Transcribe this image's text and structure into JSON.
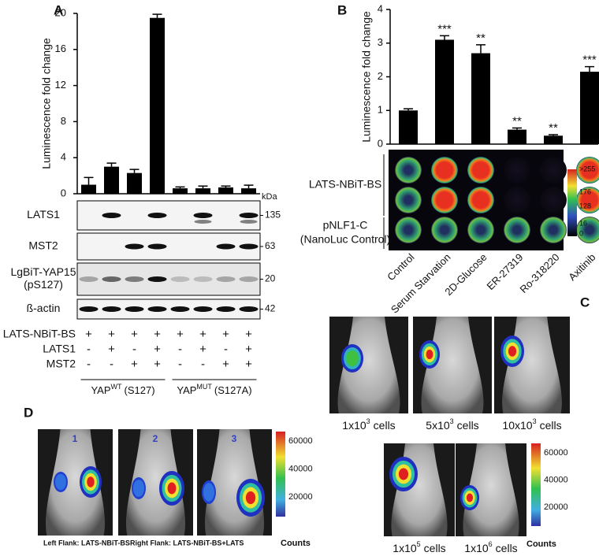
{
  "chart_data": [
    {
      "type": "bar",
      "label": "A",
      "ylabel": "Luminescence fold change",
      "categories": [
        null,
        null,
        null,
        null,
        null,
        null,
        null,
        null
      ],
      "values": [
        1.0,
        3.0,
        2.3,
        19.5,
        0.6,
        0.6,
        0.7,
        0.6
      ],
      "errors": [
        0.8,
        0.4,
        0.4,
        0.4,
        0.15,
        0.25,
        0.15,
        0.35
      ],
      "ylim": [
        0,
        20
      ],
      "yticks": [
        0,
        4,
        8,
        12,
        16,
        20
      ],
      "color": "#000000"
    },
    {
      "type": "bar",
      "label": "B",
      "ylabel": "Luminescence fold change",
      "categories": [
        "Control",
        "Serum Starvation",
        "2D-Glucose",
        "ER-27319",
        "Ro-318220",
        "Axitinib"
      ],
      "values": [
        1.0,
        3.1,
        2.7,
        0.43,
        0.25,
        2.15
      ],
      "errors": [
        0.05,
        0.12,
        0.25,
        0.05,
        0.03,
        0.15
      ],
      "annotations": [
        null,
        "***",
        "**",
        "**",
        "**",
        "***"
      ],
      "ylim": [
        0,
        4
      ],
      "yticks": [
        0,
        1,
        2,
        3,
        4
      ],
      "color": "#000000"
    }
  ],
  "blot": {
    "unit": "kDa",
    "rows": [
      {
        "label": [
          "LATS1"
        ],
        "kda": 135
      },
      {
        "label": [
          "MST2"
        ],
        "kda": 63
      },
      {
        "label": [
          "LgBiT-YAP15",
          "(pS127)"
        ],
        "kda": 20
      },
      {
        "label": [
          "ß-actin"
        ],
        "kda": 42
      }
    ]
  },
  "conditions": {
    "rows": [
      {
        "label": "LATS-NBiT-BS",
        "signs": [
          "+",
          "+",
          "+",
          "+",
          "+",
          "+",
          "+",
          "+"
        ]
      },
      {
        "label": "LATS1",
        "signs": [
          "-",
          "+",
          "-",
          "+",
          "-",
          "+",
          "-",
          "+"
        ]
      },
      {
        "label": "MST2",
        "signs": [
          "-",
          "-",
          "+",
          "+",
          "-",
          "-",
          "+",
          "+"
        ]
      }
    ],
    "groups": [
      {
        "gene": "YAP",
        "sup": "WT",
        "site": "(S127)"
      },
      {
        "gene": "YAP",
        "sup": "MUT",
        "site": "(S127A)"
      }
    ]
  },
  "imaging": {
    "rows": [
      {
        "label": [
          "LATS-NBiT-BS"
        ]
      },
      {
        "label": [
          "pNLF1-C",
          "(NanoLuc Control)"
        ]
      }
    ],
    "scale": [
      ">255",
      "176",
      "128",
      "16",
      "0"
    ]
  },
  "xenograft": {
    "label": "C",
    "images": [
      {
        "base": "1x10",
        "exp": "3",
        "unit": "cells"
      },
      {
        "base": "5x10",
        "exp": "3",
        "unit": "cells"
      },
      {
        "base": "10x10",
        "exp": "3",
        "unit": "cells"
      },
      {
        "base": "1x10",
        "exp": "5",
        "unit": "cells"
      },
      {
        "base": "1x10",
        "exp": "6",
        "unit": "cells"
      }
    ],
    "scale": [
      "60000",
      "40000",
      "20000"
    ],
    "scale_unit": "Counts"
  },
  "flank": {
    "label": "D",
    "numbers": [
      "1",
      "2",
      "3"
    ],
    "captions": [
      "Left Flank: LATS-NBiT-BS",
      "Right Flank: LATS-NBiT-BS+LATS"
    ],
    "scale": [
      "60000",
      "40000",
      "20000"
    ],
    "scale_unit": "Counts"
  }
}
